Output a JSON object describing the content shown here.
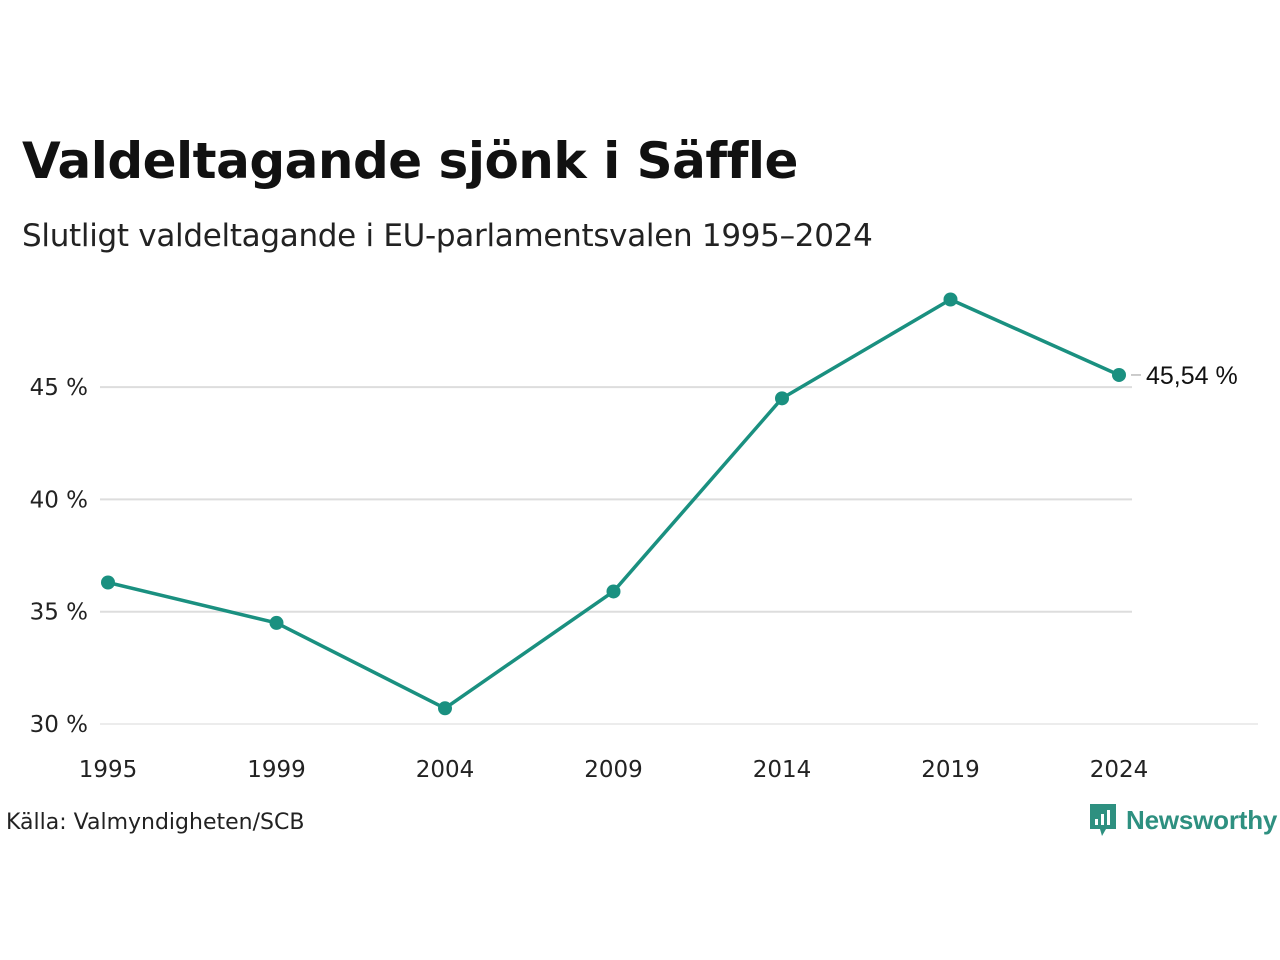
{
  "title": "Valdeltagande sjönk i Säffle",
  "subtitle": "Slutligt valdeltagande i EU-parlamentsvalen 1995–2024",
  "source": "Källa: Valmyndigheten/SCB",
  "brand": "Newsworthy",
  "colors": {
    "line": "#1a9080",
    "grid": "#dddddd",
    "brand": "#2e9080"
  },
  "chart_data": {
    "type": "line",
    "x": [
      "1995",
      "1999",
      "2004",
      "2009",
      "2014",
      "2019",
      "2024"
    ],
    "values": [
      36.3,
      34.5,
      30.7,
      35.9,
      44.5,
      48.9,
      45.54
    ],
    "ylim": [
      30,
      49
    ],
    "yticks": [
      30,
      35,
      40,
      45
    ],
    "ytick_labels": [
      "30 %",
      "35 %",
      "40 %",
      "45 %"
    ],
    "end_label": "45,54 %",
    "grid": true
  }
}
